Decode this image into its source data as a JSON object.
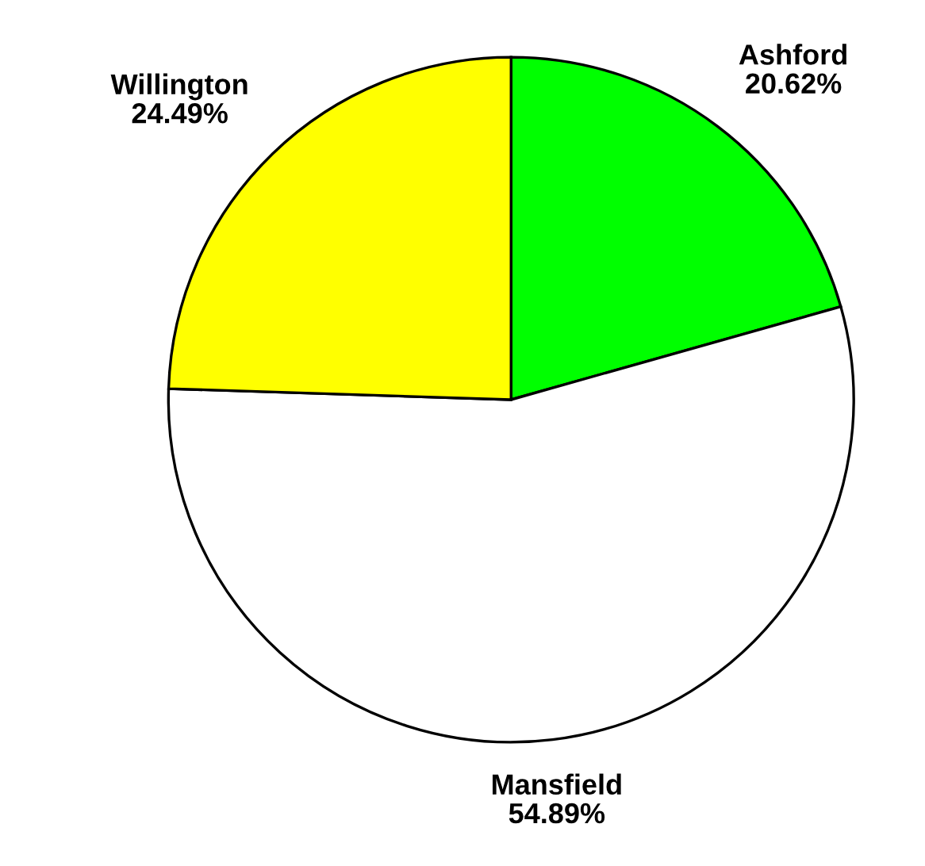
{
  "chart_data": {
    "type": "pie",
    "categories": [
      "Ashford",
      "Mansfield",
      "Willington"
    ],
    "values": [
      20.62,
      54.89,
      24.49
    ],
    "colors": [
      "#00ff00",
      "#ffffff",
      "#ffff00"
    ],
    "value_labels": [
      "20.62%",
      "54.89%",
      "24.49%"
    ]
  }
}
